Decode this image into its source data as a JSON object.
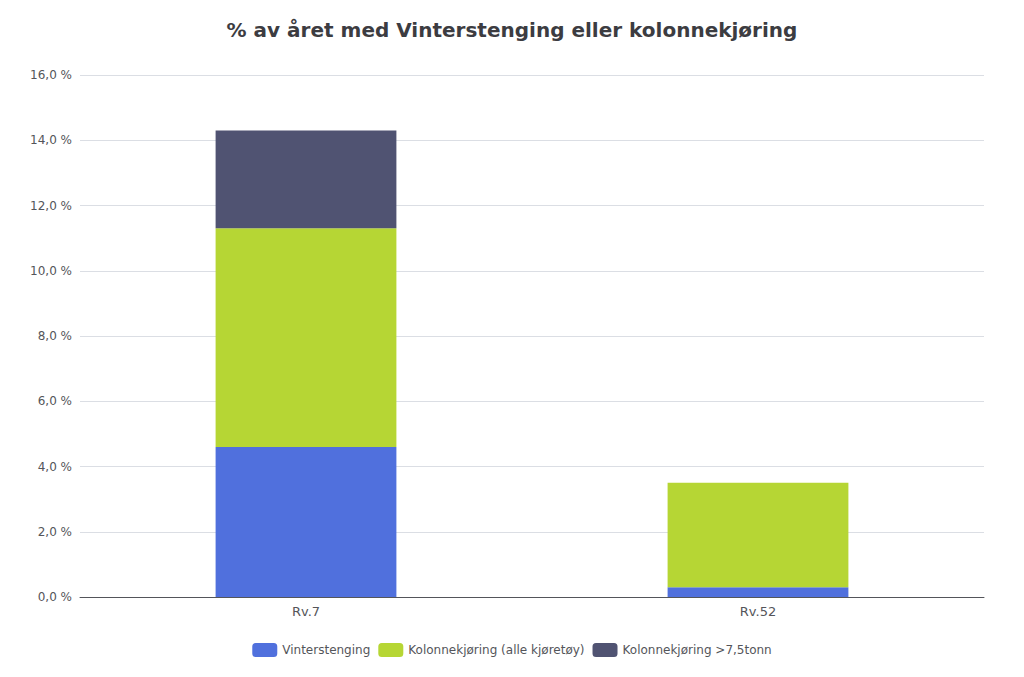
{
  "chart_data": {
    "type": "bar",
    "title": "% av året med Vinterstenging eller kolonnekjøring",
    "categories": [
      "Rv.7",
      "Rv.52"
    ],
    "series": [
      {
        "name": "Vinterstenging",
        "values": [
          4.6,
          0.3
        ]
      },
      {
        "name": "Kolonnekjøring (alle kjøretøy)",
        "values": [
          6.7,
          3.2
        ]
      },
      {
        "name": "Kolonnekjøring >7,5tonn",
        "values": [
          3.0,
          0.0
        ]
      }
    ],
    "stacked": true,
    "ylim": [
      0,
      16.0
    ],
    "yticks": [
      {
        "value": 0.0,
        "label": "0,0 %"
      },
      {
        "value": 2.0,
        "label": "2,0 %"
      },
      {
        "value": 4.0,
        "label": "4,0 %"
      },
      {
        "value": 6.0,
        "label": "6,0 %"
      },
      {
        "value": 8.0,
        "label": "8,0 %"
      },
      {
        "value": 10.0,
        "label": "10,0 %"
      },
      {
        "value": 12.0,
        "label": "12,0 %"
      },
      {
        "value": 14.0,
        "label": "14,0 %"
      },
      {
        "value": 16.0,
        "label": "16,0 %"
      }
    ],
    "grid": true,
    "legend": "bottom"
  }
}
